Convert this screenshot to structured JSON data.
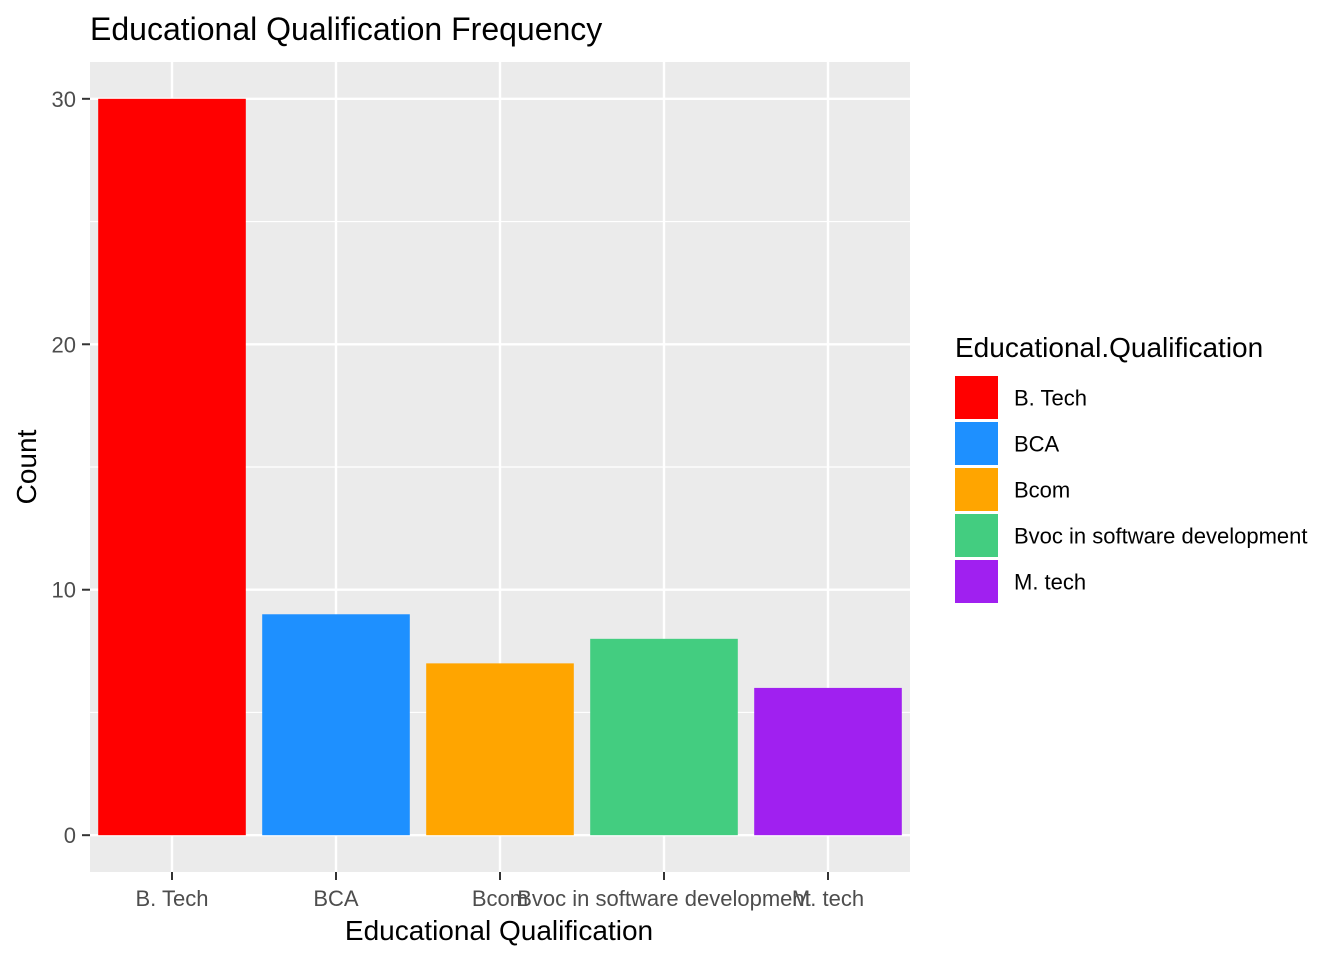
{
  "chart_data": {
    "type": "bar",
    "title": "Educational Qualification Frequency",
    "xlabel": "Educational Qualification",
    "ylabel": "Count",
    "categories": [
      "B. Tech",
      "BCA",
      "Bcom",
      "Bvoc in software development",
      "M. tech"
    ],
    "values": [
      30,
      9,
      7,
      8,
      6
    ],
    "colors": [
      "#FF0000",
      "#1E90FF",
      "#FFA500",
      "#43CD80",
      "#A020F0"
    ],
    "ylim": [
      -1.5,
      31.5
    ],
    "yticks": [
      0,
      10,
      20,
      30
    ],
    "grid": true,
    "panel_background": "#EBEBEB",
    "legend": {
      "title": "Educational.Qualification",
      "position": "right",
      "entries": [
        "B. Tech",
        "BCA",
        "Bcom",
        "Bvoc in software development",
        "M. tech"
      ]
    }
  }
}
